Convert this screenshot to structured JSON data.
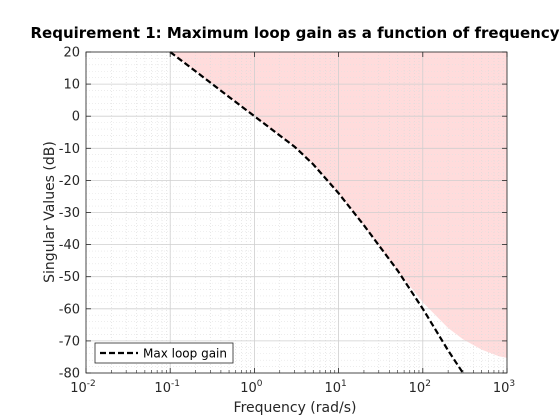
{
  "chart_data": {
    "type": "line",
    "title": "Requirement 1: Maximum loop gain as a function of frequency",
    "xlabel": "Frequency (rad/s)",
    "ylabel": "Singular Values (dB)",
    "xscale": "log",
    "xlim": [
      0.01,
      1000
    ],
    "ylim": [
      -80,
      20
    ],
    "x_ticks": [
      {
        "base": "10",
        "exp": "-2",
        "value": 0.01
      },
      {
        "base": "10",
        "exp": "-1",
        "value": 0.1
      },
      {
        "base": "10",
        "exp": "0",
        "value": 1
      },
      {
        "base": "10",
        "exp": "1",
        "value": 10
      },
      {
        "base": "10",
        "exp": "2",
        "value": 100
      },
      {
        "base": "10",
        "exp": "3",
        "value": 1000
      }
    ],
    "y_ticks": [
      20,
      10,
      0,
      -10,
      -20,
      -30,
      -40,
      -50,
      -60,
      -70,
      -80
    ],
    "grid": true,
    "legend": {
      "location": "bottom-left",
      "entries": [
        "Max loop gain"
      ]
    },
    "series": [
      {
        "name": "Max loop gain",
        "style": "dashed",
        "color": "#000000",
        "x": [
          0.1,
          0.2,
          0.5,
          1,
          2,
          3,
          5,
          10,
          20,
          50,
          100,
          200,
          300
        ],
        "y": [
          20,
          14,
          6,
          0,
          -6,
          -9.5,
          -15,
          -24,
          -34,
          -48,
          -60,
          -73,
          -80
        ]
      }
    ],
    "shaded_region": {
      "description_color": "#ffdcdc",
      "x": [
        0.1,
        0.2,
        0.5,
        1,
        2,
        3,
        5,
        10,
        20,
        50,
        100,
        200,
        300,
        500,
        800,
        1000
      ],
      "y": [
        20,
        14,
        6,
        0,
        -6,
        -9.5,
        -15,
        -24,
        -34,
        -48,
        -58,
        -66,
        -69.5,
        -72.7,
        -74.8,
        -75.3
      ]
    }
  }
}
